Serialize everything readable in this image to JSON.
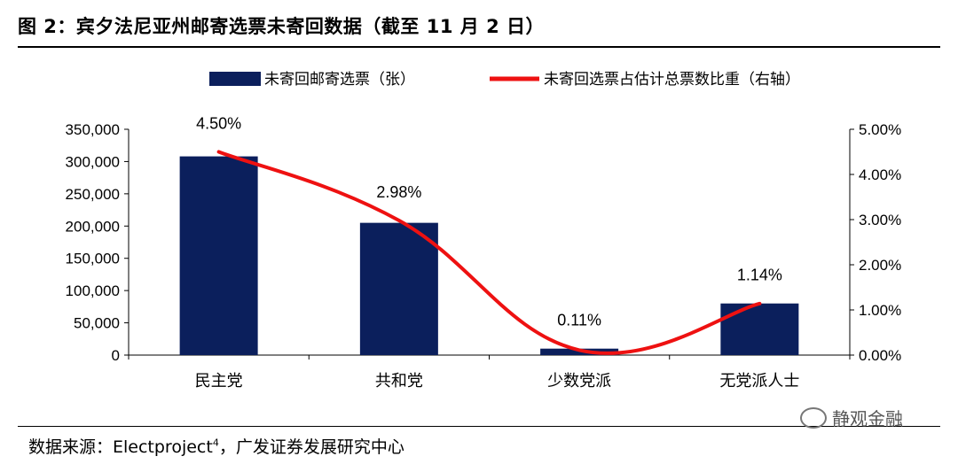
{
  "figure": {
    "title": "图 2：宾夕法尼亚州邮寄选票未寄回数据（截至 11 月 2 日）",
    "source_prefix": "数据来源：Electproject",
    "source_sup": "4",
    "source_suffix": "，广发证券发展研究中心",
    "watermark": "静观金融"
  },
  "chart_data": {
    "type": "bar",
    "categories": [
      "民主党",
      "共和党",
      "少数党派",
      "无党派人士"
    ],
    "series": [
      {
        "name": "未寄回邮寄选票（张）",
        "type": "bar",
        "axis": "left",
        "values": [
          308000,
          205000,
          10000,
          80000
        ],
        "color": "#0b1f5c"
      },
      {
        "name": "未寄回选票占估计总票数比重（右轴）",
        "type": "line",
        "axis": "right",
        "values": [
          4.5,
          2.98,
          0.11,
          1.14
        ],
        "data_labels": [
          "4.50%",
          "2.98%",
          "0.11%",
          "1.14%"
        ],
        "color": "#ee1111"
      }
    ],
    "y_left": {
      "lim": [
        0,
        350000
      ],
      "ticks": [
        0,
        50000,
        100000,
        150000,
        200000,
        250000,
        300000,
        350000
      ],
      "tick_labels": [
        "0",
        "50,000",
        "100,000",
        "150,000",
        "200,000",
        "250,000",
        "300,000",
        "350,000"
      ]
    },
    "y_right": {
      "lim": [
        0,
        5
      ],
      "ticks": [
        0,
        1,
        2,
        3,
        4,
        5
      ],
      "tick_labels": [
        "0.00%",
        "1.00%",
        "2.00%",
        "3.00%",
        "4.00%",
        "5.00%"
      ]
    },
    "legend_position": "top",
    "grid": false
  }
}
